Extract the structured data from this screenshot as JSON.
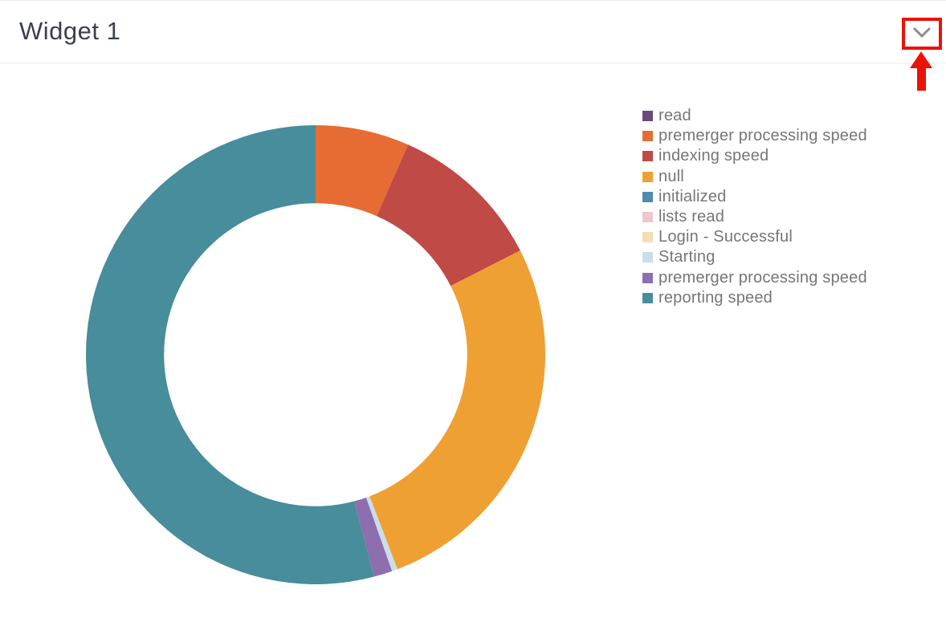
{
  "header": {
    "title": "Widget 1",
    "collapse_icon": "chevron-down",
    "title_color": "#3a3f55",
    "divider_color": "#e9eaee"
  },
  "annotation": {
    "color": "#e9130a",
    "shape": "box-and-arrow",
    "target": "collapse-button"
  },
  "chart_data": {
    "type": "pie",
    "variant": "donut",
    "title": "Widget 1",
    "legend_position": "right",
    "inner_radius_ratio": 0.66,
    "start_angle_deg": 0,
    "direction": "clockwise",
    "series": [
      {
        "name": "read",
        "color": "#6b4a7e",
        "value_pct": 0
      },
      {
        "name": "premerger processing speed",
        "color": "#e66c33",
        "value_pct": 6.6
      },
      {
        "name": "indexing speed",
        "color": "#c04a45",
        "value_pct": 10.9
      },
      {
        "name": "null",
        "color": "#efa032",
        "value_pct": 26.7
      },
      {
        "name": "initialized",
        "color": "#4e8cab",
        "value_pct": 0
      },
      {
        "name": "lists read",
        "color": "#eec7ca",
        "value_pct": 0
      },
      {
        "name": "Login - Successful",
        "color": "#f6ddb3",
        "value_pct": 0
      },
      {
        "name": "Starting",
        "color": "#cbdde9",
        "value_pct": 0.4
      },
      {
        "name": "premerger processing speed",
        "color": "#8d6eae",
        "value_pct": 1.3
      },
      {
        "name": "reporting speed",
        "color": "#478d9b",
        "value_pct": 54.1
      }
    ]
  }
}
